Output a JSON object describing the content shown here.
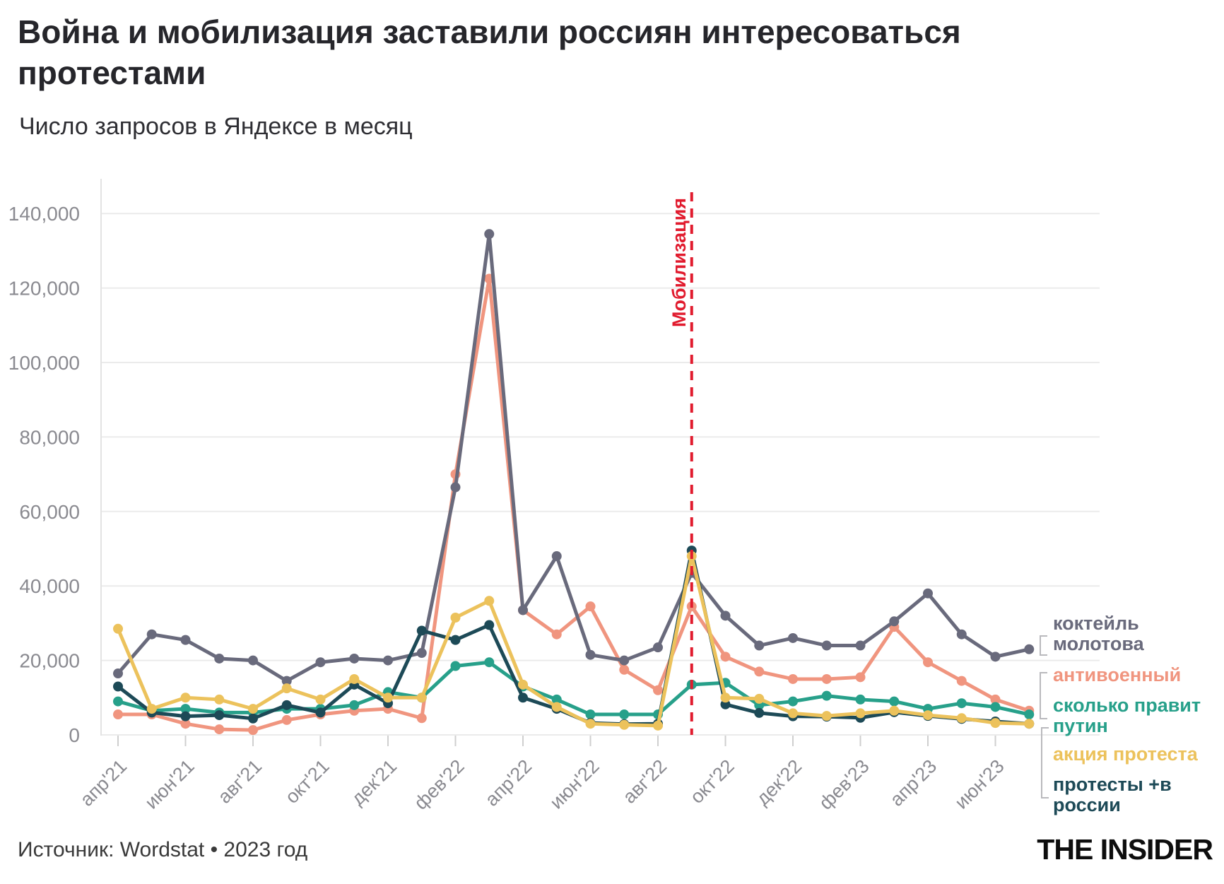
{
  "title": "Война и мобилизация заставили россиян интересоваться\nпротестами",
  "subtitle": "Число запросов в Яндексе в месяц",
  "source": "Источник: Wordstat • 2023 год",
  "logo": "THE INSIDER",
  "chart_data": {
    "type": "line",
    "grid": true,
    "legend_position": "right",
    "ylim": [
      0,
      140000
    ],
    "yticks": [
      0,
      20000,
      40000,
      60000,
      80000,
      100000,
      120000,
      140000
    ],
    "ytick_labels": [
      "0",
      "20,000",
      "40,000",
      "60,000",
      "80,000",
      "100,000",
      "120,000",
      "140,000"
    ],
    "x_tick_labels": [
      "апр'21",
      "июн'21",
      "авг'21",
      "окт'21",
      "дек'21",
      "фев'22",
      "апр'22",
      "июн'22",
      "авг'22",
      "окт'22",
      "дек'22",
      "фев'23",
      "апр'23",
      "июн'23"
    ],
    "months": [
      "апр'21",
      "май'21",
      "июн'21",
      "июл'21",
      "авг'21",
      "сен'21",
      "окт'21",
      "ноя'21",
      "дек'21",
      "янв'22",
      "фев'22",
      "мар'22",
      "апр'22",
      "май'22",
      "июн'22",
      "июл'22",
      "авг'22",
      "сен'22",
      "окт'22",
      "ноя'22",
      "дек'22",
      "янв'23",
      "фев'23",
      "мар'23",
      "апр'23",
      "май'23",
      "июн'23",
      "июл'23"
    ],
    "series": [
      {
        "name": "коктейль молотова",
        "color": "#696a7c",
        "values": [
          16500,
          27000,
          25500,
          20500,
          20000,
          14500,
          19500,
          20500,
          20000,
          22000,
          66500,
          134500,
          33500,
          48000,
          21500,
          20000,
          23500,
          43500,
          32000,
          24000,
          26000,
          24000,
          24000,
          30500,
          38000,
          27000,
          21000,
          23000
        ]
      },
      {
        "name": "антивоенный",
        "color": "#f0957f",
        "values": [
          5500,
          5500,
          3000,
          1500,
          1300,
          4000,
          5500,
          6500,
          7000,
          4500,
          70000,
          122500,
          33500,
          27000,
          34500,
          17500,
          12000,
          34500,
          21000,
          17000,
          15000,
          15000,
          15500,
          29000,
          19500,
          14500,
          9500,
          6500
        ]
      },
      {
        "name": "сколько правит путин",
        "color": "#27a08a",
        "values": [
          9000,
          6500,
          7000,
          6000,
          6000,
          7000,
          7000,
          8000,
          11500,
          10000,
          18500,
          19500,
          13000,
          9500,
          5500,
          5500,
          5500,
          13500,
          14000,
          8000,
          9000,
          10500,
          9500,
          9000,
          7000,
          8500,
          7500,
          5500
        ]
      },
      {
        "name": "акция протеста",
        "color": "#ecc25c",
        "values": [
          28500,
          7000,
          10000,
          9500,
          7000,
          12500,
          9500,
          15000,
          10000,
          10000,
          31500,
          36000,
          13500,
          7500,
          3000,
          2700,
          2500,
          48000,
          10000,
          9700,
          5800,
          5100,
          5800,
          6500,
          5300,
          4500,
          3200,
          3000
        ]
      },
      {
        "name": "протесты +в россии",
        "color": "#1d4a57",
        "values": [
          13000,
          6000,
          5000,
          5300,
          4400,
          8000,
          6000,
          13500,
          8500,
          28000,
          25500,
          29500,
          10000,
          7000,
          3200,
          2900,
          3000,
          49500,
          8200,
          5900,
          5000,
          4900,
          4600,
          6100,
          5100,
          4300,
          3600,
          3000
        ]
      }
    ],
    "annotation": {
      "label": "Мобилизация",
      "month_index": 17,
      "style": "dashed",
      "color": "#e11b2e"
    }
  },
  "legend": {
    "items": [
      {
        "label": "коктейль\nмолотова",
        "series_index": 0
      },
      {
        "label": "антивоенный",
        "series_index": 1
      },
      {
        "label": "сколько правит\nпутин",
        "series_index": 2
      },
      {
        "label": "акция протеста",
        "series_index": 3
      },
      {
        "label": "протесты +в\nроссии",
        "series_index": 4
      }
    ]
  }
}
